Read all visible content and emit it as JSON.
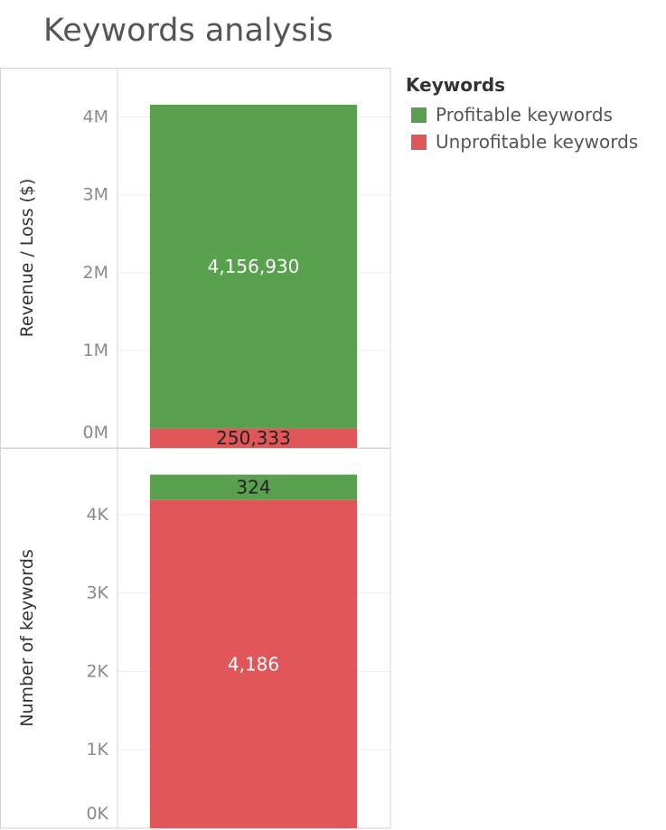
{
  "title": "Keywords analysis",
  "legend": {
    "title": "Keywords",
    "items": [
      {
        "label": "Profitable keywords",
        "color": "#59a14f"
      },
      {
        "label": "Unprofitable keywords",
        "color": "#e15759"
      }
    ]
  },
  "chart_data": [
    {
      "type": "bar",
      "stacked": true,
      "ylabel": "Revenue / Loss ($)",
      "ylim": [
        -250333,
        4400000
      ],
      "yticks": [
        0,
        1000000,
        2000000,
        3000000,
        4000000
      ],
      "ytick_labels": [
        "0M",
        "1M",
        "2M",
        "3M",
        "4M"
      ],
      "grid": true,
      "segments": [
        {
          "series": "Unprofitable keywords",
          "start": -250333,
          "end": 0,
          "value": 250333,
          "label": "250,333",
          "color": "#e15759",
          "label_color": "#222222"
        },
        {
          "series": "Profitable keywords",
          "start": 0,
          "end": 4156930,
          "value": 4156930,
          "label": "4,156,930",
          "color": "#59a14f",
          "label_color": "#ffffff"
        }
      ]
    },
    {
      "type": "bar",
      "stacked": true,
      "ylabel": "Number of keywords",
      "ylim": [
        0,
        4620
      ],
      "yticks": [
        0,
        1000,
        2000,
        3000,
        4000
      ],
      "ytick_labels": [
        "0K",
        "1K",
        "2K",
        "3K",
        "4K"
      ],
      "grid": true,
      "segments": [
        {
          "series": "Unprofitable keywords",
          "start": 0,
          "end": 4186,
          "value": 4186,
          "label": "4,186",
          "color": "#e15759",
          "label_color": "#ffffff"
        },
        {
          "series": "Profitable keywords",
          "start": 4186,
          "end": 4510,
          "value": 324,
          "label": "324",
          "color": "#59a14f",
          "label_color": "#222222"
        }
      ]
    }
  ]
}
